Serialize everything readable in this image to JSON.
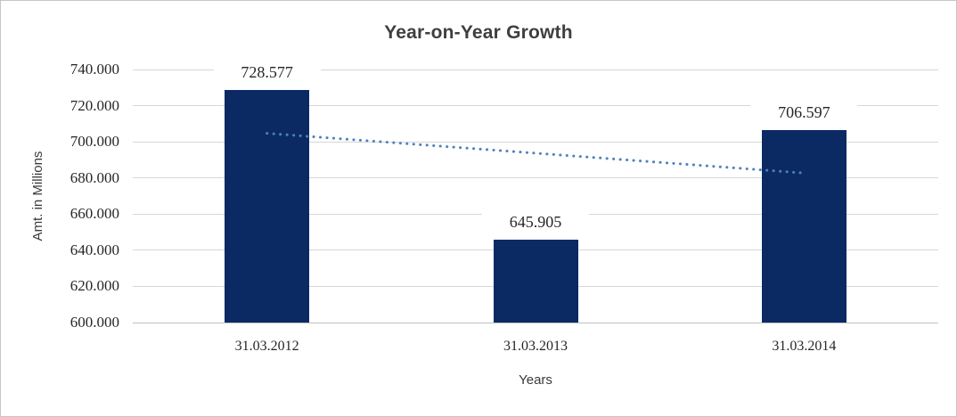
{
  "chart_data": {
    "type": "bar",
    "title": "Year-on-Year Growth",
    "xlabel": "Years",
    "ylabel": "Amt. in Millions",
    "categories": [
      "31.03.2012",
      "31.03.2013",
      "31.03.2014"
    ],
    "values": [
      728.577,
      645.905,
      706.597
    ],
    "data_labels": [
      "728.577",
      "645.905",
      "706.597"
    ],
    "ylim": [
      600,
      740
    ],
    "ytick_step": 20,
    "yticks": [
      {
        "value": 740,
        "label": "740.000"
      },
      {
        "value": 720,
        "label": "720.000"
      },
      {
        "value": 700,
        "label": "700.000"
      },
      {
        "value": 680,
        "label": "680.000"
      },
      {
        "value": 660,
        "label": "660.000"
      },
      {
        "value": 640,
        "label": "640.000"
      },
      {
        "value": 620,
        "label": "620.000"
      },
      {
        "value": 600,
        "label": "600.000"
      }
    ],
    "grid": true,
    "legend": "none",
    "trendline": {
      "type": "linear",
      "style": "dotted",
      "start_value": 704.69,
      "end_value": 682.71,
      "color": "#4f81bd"
    },
    "colors": {
      "bar": "#0b2a64",
      "trendline": "#4f81bd",
      "gridline": "#d7d7d7",
      "axis_line": "#c0c0c0",
      "label_text": "#262626",
      "title_text": "#3f3f3f",
      "frame_border": "#c6c6c6"
    }
  }
}
